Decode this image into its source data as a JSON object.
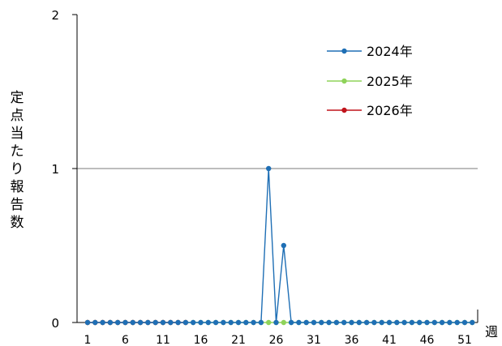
{
  "chart_data": {
    "type": "line",
    "ylabel": "定点当たり報告数",
    "xlabel": "週",
    "ylim": [
      0,
      2
    ],
    "yticks": [
      0,
      1,
      2
    ],
    "xticks": [
      1,
      6,
      11,
      16,
      21,
      26,
      31,
      36,
      41,
      46,
      51
    ],
    "xlim": [
      1,
      53
    ],
    "grid": "horizontal at y=1",
    "legend_position": "top-right",
    "series": [
      {
        "name": "2024年",
        "color": "#1f6fb5",
        "x": [
          1,
          2,
          3,
          4,
          5,
          6,
          7,
          8,
          9,
          10,
          11,
          12,
          13,
          14,
          15,
          16,
          17,
          18,
          19,
          20,
          21,
          22,
          23,
          24,
          25,
          26,
          27,
          28,
          29,
          30,
          31,
          32,
          33,
          34,
          35,
          36,
          37,
          38,
          39,
          40,
          41,
          42,
          43,
          44,
          45,
          46,
          47,
          48,
          49,
          50,
          51,
          52
        ],
        "values": [
          0,
          0,
          0,
          0,
          0,
          0,
          0,
          0,
          0,
          0,
          0,
          0,
          0,
          0,
          0,
          0,
          0,
          0,
          0,
          0,
          0,
          0,
          0,
          0,
          1,
          0,
          0.5,
          0,
          0,
          0,
          0,
          0,
          0,
          0,
          0,
          0,
          0,
          0,
          0,
          0,
          0,
          0,
          0,
          0,
          0,
          0,
          0,
          0,
          0,
          0,
          0,
          0
        ]
      },
      {
        "name": "2025年",
        "color": "#8fd35a",
        "x": [
          1,
          2,
          3,
          4,
          5,
          6,
          7,
          8,
          9,
          10,
          11,
          12,
          13,
          14,
          15,
          16,
          17,
          18,
          19,
          20,
          21,
          22,
          23,
          24,
          25,
          26,
          27,
          28,
          29,
          30,
          31,
          32,
          33,
          34,
          35,
          36,
          37,
          38,
          39,
          40,
          41,
          42,
          43,
          44,
          45,
          46,
          47,
          48,
          49,
          50,
          51,
          52
        ],
        "values": [
          0,
          0,
          0,
          0,
          0,
          0,
          0,
          0,
          0,
          0,
          0,
          0,
          0,
          0,
          0,
          0,
          0,
          0,
          0,
          0,
          0,
          0,
          0,
          0,
          0,
          0,
          0,
          0,
          0,
          0,
          0,
          0,
          0,
          0,
          0,
          0,
          0,
          0,
          0,
          0,
          0,
          0,
          0,
          0,
          0,
          0,
          0,
          0,
          0,
          0,
          0,
          0
        ]
      },
      {
        "name": "2026年",
        "color": "#c0141c",
        "x": [
          1,
          2,
          3,
          4,
          5,
          6,
          7,
          8,
          9,
          10,
          11,
          12,
          13,
          14
        ],
        "values": [
          0,
          0,
          0,
          0,
          0,
          0,
          0,
          0,
          0,
          0,
          0,
          0,
          0,
          0
        ]
      }
    ]
  }
}
